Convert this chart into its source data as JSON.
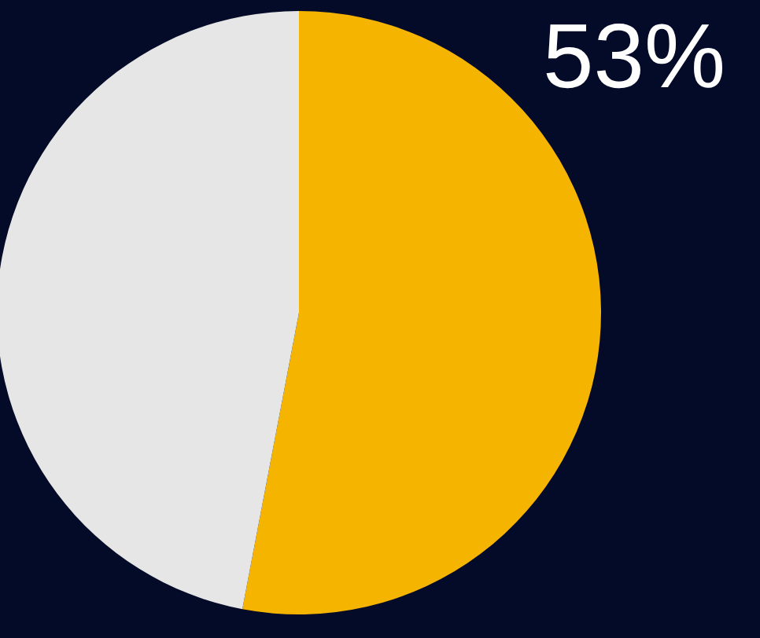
{
  "chart_data": {
    "type": "pie",
    "categories": [
      null,
      null
    ],
    "values": [
      53,
      47
    ],
    "colors": [
      "#f5b400",
      "#e6e6e6"
    ],
    "value_labels": [
      "53%",
      null
    ]
  }
}
